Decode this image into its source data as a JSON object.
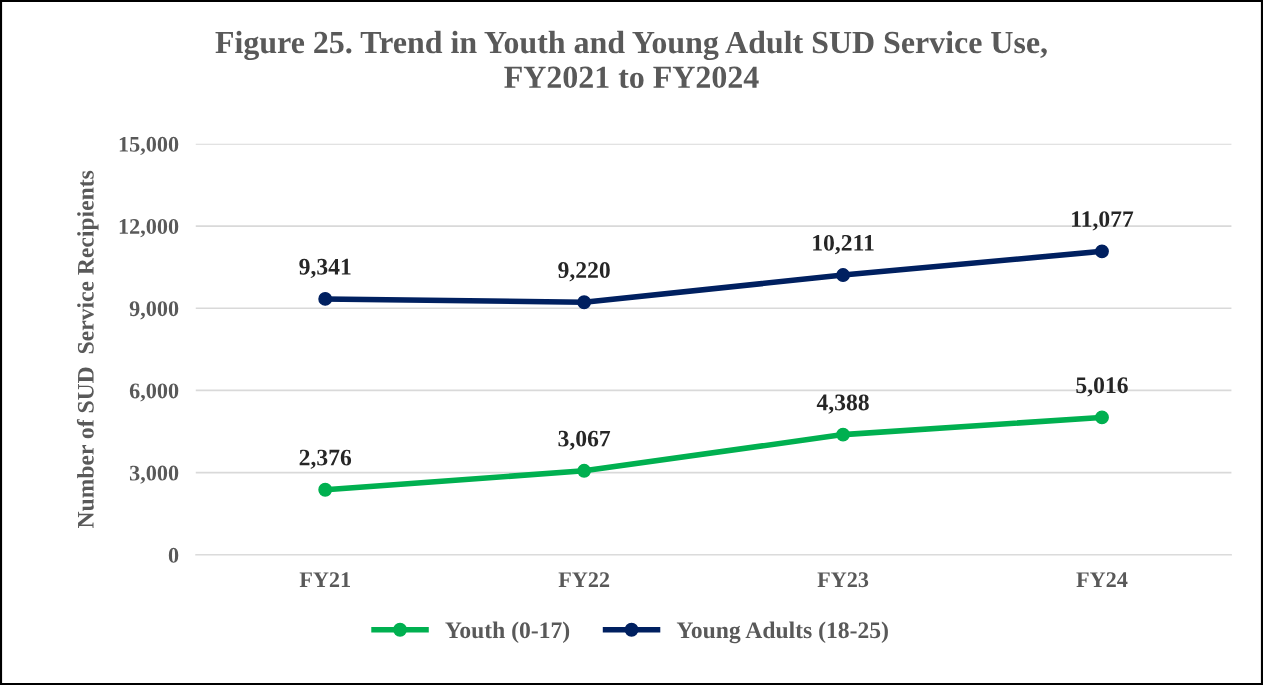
{
  "chart_data": {
    "type": "line",
    "title": "Figure 25. Trend in Youth and Young Adult SUD Service Use,\nFY2021 to FY2024",
    "ylabel": "Number of SUD  Service Recipients",
    "categories": [
      "FY21",
      "FY22",
      "FY23",
      "FY24"
    ],
    "series": [
      {
        "name": "Youth (0-17)",
        "color": "#00b050",
        "values": [
          2376,
          3067,
          4388,
          5016
        ],
        "value_labels": [
          "2,376",
          "3,067",
          "4,388",
          "5,016"
        ]
      },
      {
        "name": "Young Adults (18-25)",
        "color": "#002060",
        "values": [
          9341,
          9220,
          10211,
          11077
        ],
        "value_labels": [
          "9,341",
          "9,220",
          "10,211",
          "11,077"
        ]
      }
    ],
    "ylim": [
      0,
      15000
    ],
    "yticks": [
      {
        "value": 0,
        "label": "0"
      },
      {
        "value": 3000,
        "label": "3,000"
      },
      {
        "value": 6000,
        "label": "6,000"
      },
      {
        "value": 9000,
        "label": "9,000"
      },
      {
        "value": 12000,
        "label": "12,000"
      },
      {
        "value": 15000,
        "label": "15,000"
      }
    ],
    "grid": "y",
    "legend": "bottom",
    "marker": "circle",
    "line_style": "solid"
  }
}
